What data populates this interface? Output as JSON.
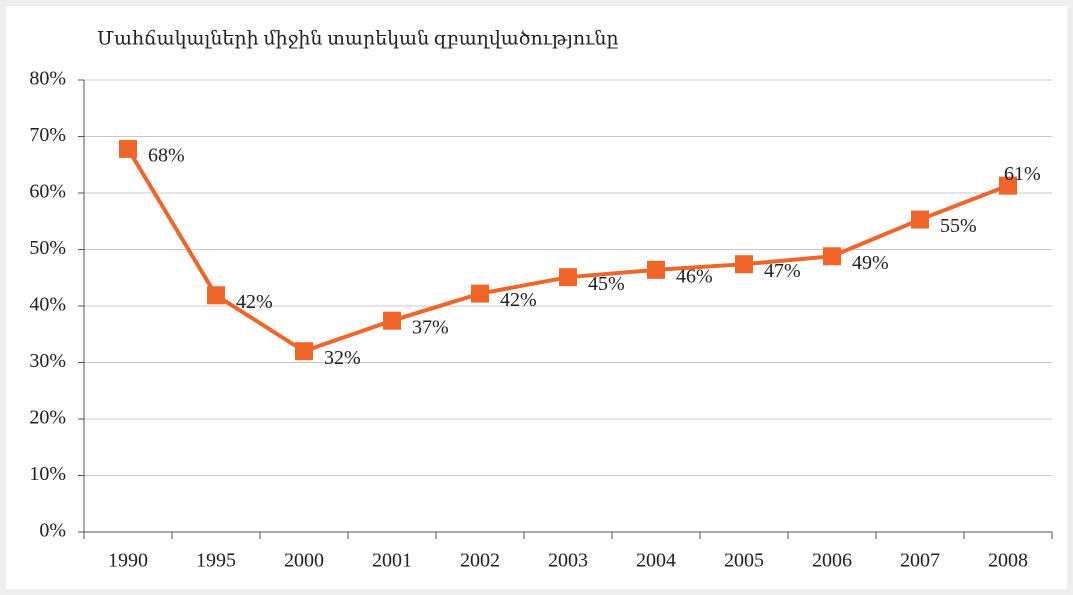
{
  "chart_data": {
    "type": "line",
    "title": "Մահճակալների միջին տարեկան զբաղվածությունը",
    "categories": [
      "1990",
      "1995",
      "2000",
      "2001",
      "2002",
      "2003",
      "2004",
      "2005",
      "2006",
      "2007",
      "2008"
    ],
    "series": [
      {
        "color": "#f0652a",
        "values": [
          67.8,
          41.9,
          32.0,
          37.4,
          42.2,
          45.1,
          46.4,
          47.4,
          48.8,
          55.3,
          61.3
        ],
        "value_labels": [
          "68%",
          "42%",
          "32%",
          "37%",
          "42%",
          "45%",
          "46%",
          "47%",
          "49%",
          "55%",
          "61%"
        ]
      }
    ],
    "ylim": [
      0,
      80
    ],
    "yticks": [
      {
        "value": 0,
        "label": "0%"
      },
      {
        "value": 10,
        "label": "10%"
      },
      {
        "value": 20,
        "label": "20%"
      },
      {
        "value": 30,
        "label": "30%"
      },
      {
        "value": 40,
        "label": "40%"
      },
      {
        "value": 50,
        "label": "50%"
      },
      {
        "value": 60,
        "label": "60%"
      },
      {
        "value": 70,
        "label": "70%"
      },
      {
        "value": 80,
        "label": "80%"
      }
    ],
    "grid": true
  }
}
